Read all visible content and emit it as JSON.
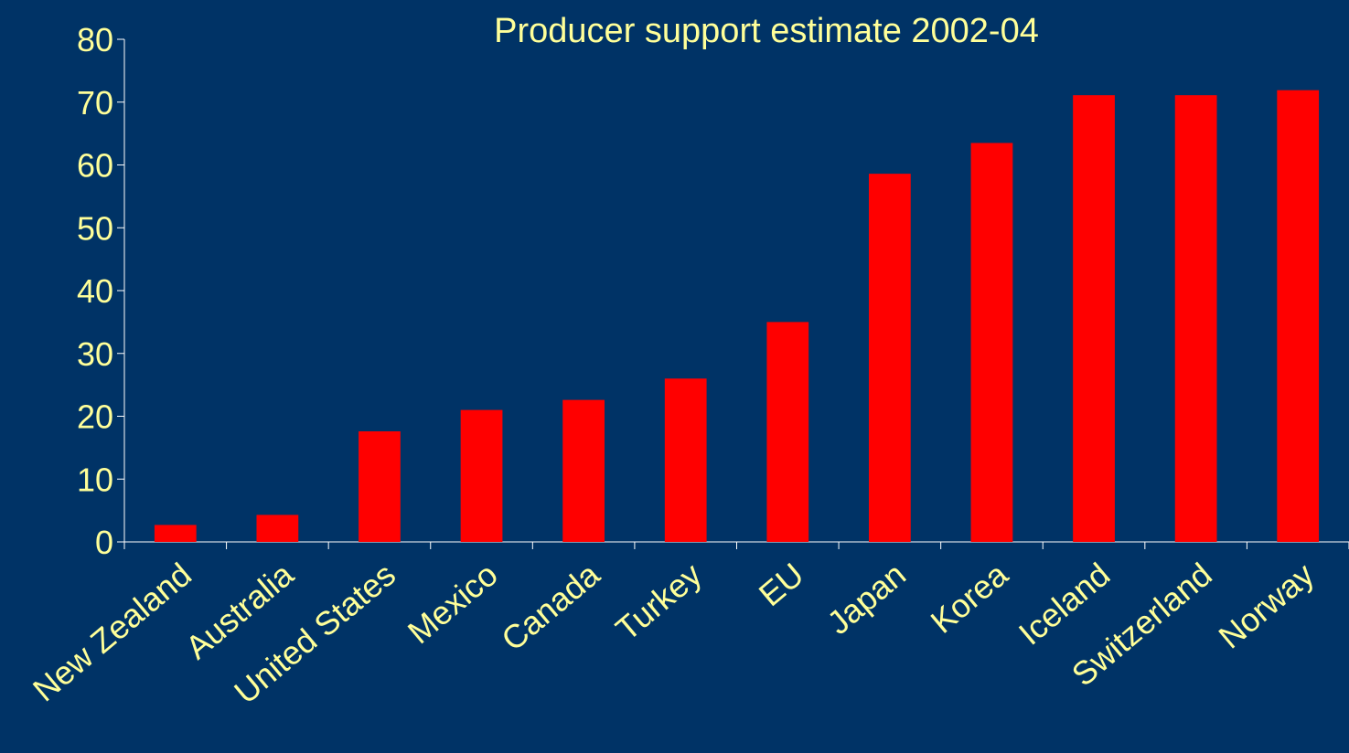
{
  "colors": {
    "background": "#003366",
    "bar": "#ff0000",
    "text": "#ffff99",
    "axis": "#ffffff"
  },
  "chart_data": {
    "type": "bar",
    "title": "Producer support estimate 2002-04",
    "xlabel": "",
    "ylabel": "",
    "ylim": [
      0,
      80
    ],
    "yticks": [
      0,
      10,
      20,
      30,
      40,
      50,
      60,
      70,
      80
    ],
    "grid": false,
    "categories": [
      "New Zealand",
      "Australia",
      "United States",
      "Mexico",
      "Canada",
      "Turkey",
      "EU",
      "Japan",
      "Korea",
      "Iceland",
      "Switzerland",
      "Norway"
    ],
    "values": [
      2.7,
      4.3,
      17.6,
      21.0,
      22.6,
      26.0,
      35.0,
      58.6,
      63.5,
      71.1,
      71.1,
      71.9
    ]
  }
}
